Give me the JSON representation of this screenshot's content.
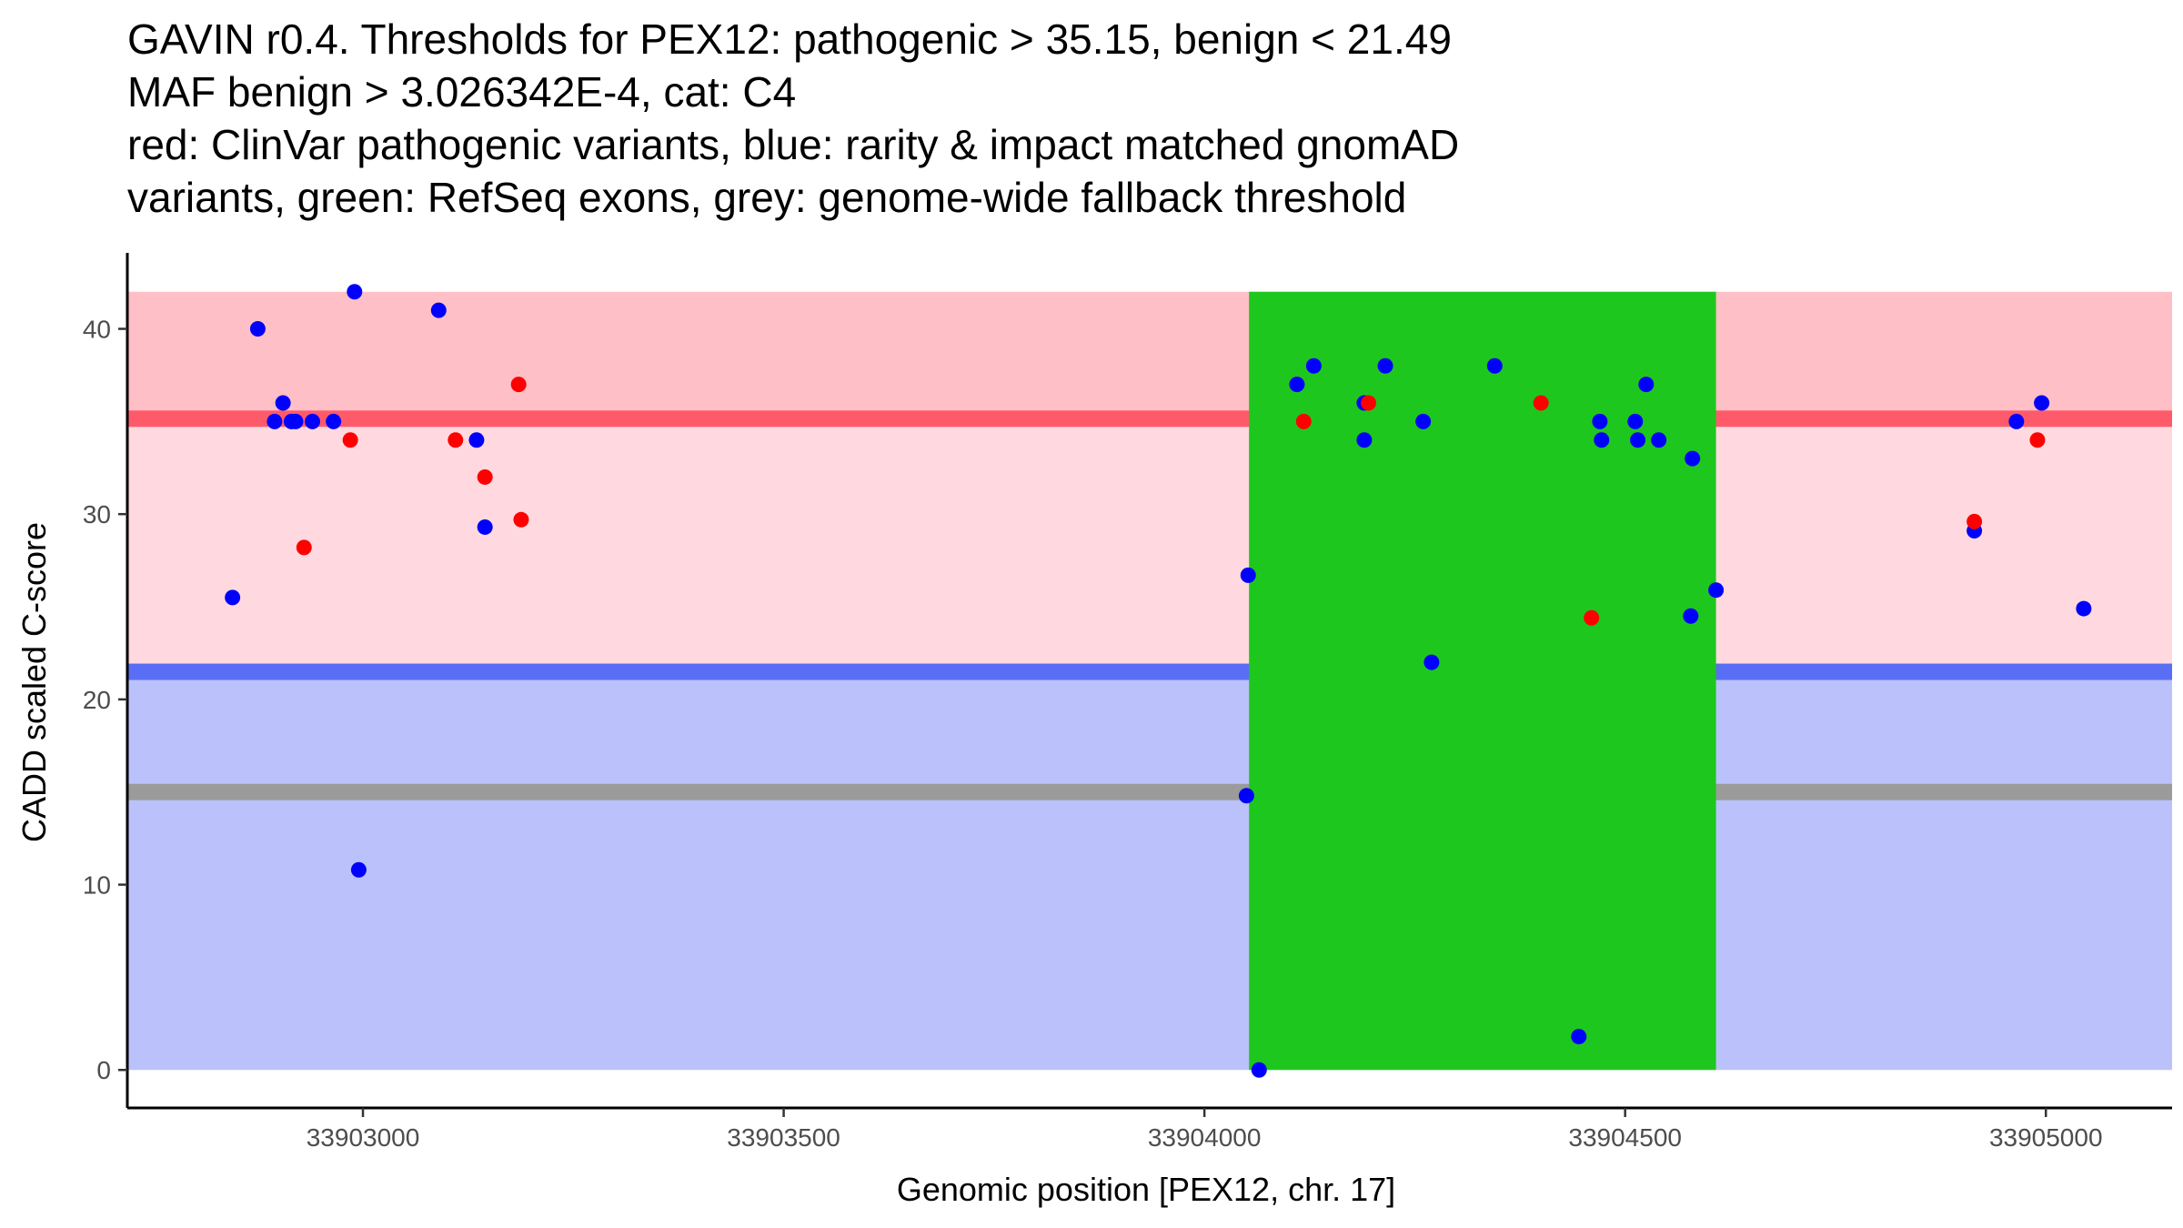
{
  "chart_data": {
    "type": "scatter",
    "title_lines": [
      "GAVIN r0.4. Thresholds for PEX12: pathogenic > 35.15, benign < 21.49",
      "MAF benign > 3.026342E-4, cat: C4",
      "red: ClinVar pathogenic variants, blue: rarity & impact matched gnomAD",
      "variants, green: RefSeq exons, grey: genome-wide fallback threshold"
    ],
    "xlabel": "Genomic position [PEX12, chr. 17]",
    "ylabel": "CADD scaled C-score",
    "xlim": [
      33902720,
      33905150
    ],
    "ylim": [
      -2.05,
      44.1
    ],
    "x_ticks": [
      33903000,
      33903500,
      33904000,
      33904500,
      33905000
    ],
    "x_tick_labels": [
      "33903000",
      "33903500",
      "33904000",
      "33904500",
      "33905000"
    ],
    "y_ticks": [
      0,
      10,
      20,
      30,
      40
    ],
    "y_tick_labels": [
      "0",
      "10",
      "20",
      "30",
      "40"
    ],
    "grid": false,
    "regions": {
      "pathogenic_band": {
        "y": [
          35.15,
          42
        ],
        "color": "#ffbfc6"
      },
      "middle_band": {
        "y": [
          21.49,
          35.15
        ],
        "color": "#ffd9df"
      },
      "benign_band": {
        "y": [
          0,
          21.49
        ],
        "color": "#bbc2fb"
      },
      "exon": {
        "x": [
          33904053,
          33904608
        ],
        "y": [
          0,
          42
        ],
        "color": "#1ec71e"
      }
    },
    "threshold_lines": [
      {
        "name": "pathogenic threshold",
        "y": 35.15,
        "color": "#ff5a6a"
      },
      {
        "name": "benign threshold",
        "y": 21.49,
        "color": "#5a6df5"
      },
      {
        "name": "genome-wide fallback threshold",
        "y": 15.0,
        "color": "#9b9b9b"
      }
    ],
    "series": [
      {
        "name": "rarity & impact matched gnomAD variants",
        "color": "#0000ff",
        "points": [
          [
            33902845,
            25.5
          ],
          [
            33902875,
            40.0
          ],
          [
            33902895,
            35.0
          ],
          [
            33902905,
            36.0
          ],
          [
            33902915,
            35.0
          ],
          [
            33902920,
            35.0
          ],
          [
            33902940,
            35.0
          ],
          [
            33902965,
            35.0
          ],
          [
            33902990,
            42.0
          ],
          [
            33902995,
            10.8
          ],
          [
            33903090,
            41.0
          ],
          [
            33903135,
            34.0
          ],
          [
            33903145,
            29.3
          ],
          [
            33904050,
            14.8
          ],
          [
            33904052,
            26.7
          ],
          [
            33904065,
            0.0
          ],
          [
            33904110,
            37.0
          ],
          [
            33904130,
            38.0
          ],
          [
            33904190,
            34.0
          ],
          [
            33904190,
            36.0
          ],
          [
            33904215,
            38.0
          ],
          [
            33904260,
            35.0
          ],
          [
            33904270,
            22.0
          ],
          [
            33904345,
            38.0
          ],
          [
            33904445,
            1.8
          ],
          [
            33904470,
            35.0
          ],
          [
            33904472,
            34.0
          ],
          [
            33904512,
            35.0
          ],
          [
            33904515,
            34.0
          ],
          [
            33904525,
            37.0
          ],
          [
            33904540,
            34.0
          ],
          [
            33904578,
            24.5
          ],
          [
            33904580,
            33.0
          ],
          [
            33904608,
            25.9
          ],
          [
            33904915,
            29.1
          ],
          [
            33904965,
            35.0
          ],
          [
            33904995,
            36.0
          ],
          [
            33905045,
            24.9
          ]
        ]
      },
      {
        "name": "ClinVar pathogenic variants",
        "color": "#ff0000",
        "points": [
          [
            33902930,
            28.2
          ],
          [
            33902985,
            34.0
          ],
          [
            33903110,
            34.0
          ],
          [
            33903145,
            32.0
          ],
          [
            33903185,
            37.0
          ],
          [
            33903188,
            29.7
          ],
          [
            33904118,
            35.0
          ],
          [
            33904195,
            36.0
          ],
          [
            33904400,
            36.0
          ],
          [
            33904460,
            24.4
          ],
          [
            33904915,
            29.6
          ],
          [
            33904990,
            34.0
          ]
        ]
      }
    ]
  }
}
